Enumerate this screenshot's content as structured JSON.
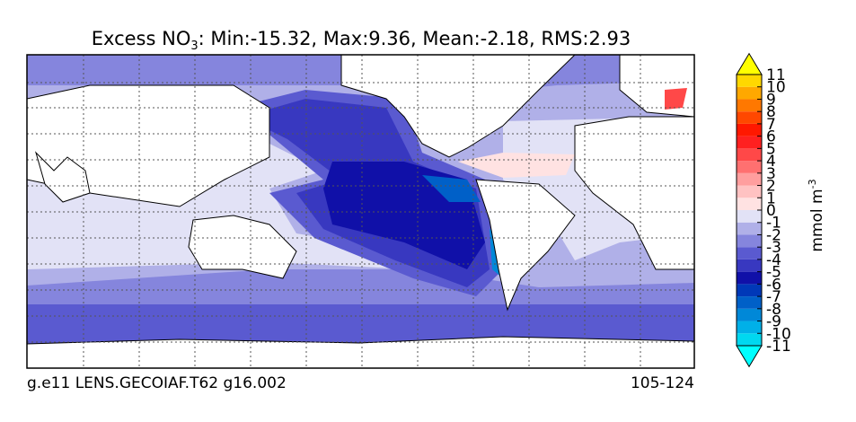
{
  "title": {
    "text": "Excess NO",
    "subscript": "3",
    "stats": ": Min:-15.32, Max:9.36, Mean:-2.18, RMS:2.93"
  },
  "footer": {
    "left": "g.e11 LENS.GECOIAF.T62 g16.002",
    "right": "105-124"
  },
  "colorbar": {
    "label": "mmol m",
    "label_superscript": "-3",
    "ticks": [
      -11,
      -10,
      -9,
      -8,
      -7,
      -6,
      -5,
      -4,
      -3,
      -2,
      -1,
      0,
      1,
      2,
      3,
      4,
      5,
      6,
      7,
      8,
      9,
      10,
      11
    ],
    "colors": [
      "#00ffff",
      "#00d8f0",
      "#00b0e8",
      "#0088d8",
      "#0060c8",
      "#0038b8",
      "#1010a8",
      "#3838c0",
      "#5a5ad0",
      "#8585dd",
      "#b0b0e8",
      "#e2e2f6",
      "#ffe2e2",
      "#ffc2c2",
      "#ff9e9e",
      "#ff7070",
      "#ff4848",
      "#ff2020",
      "#ff1800",
      "#ff4800",
      "#ff7800",
      "#ffa800",
      "#ffd800",
      "#ffff00"
    ]
  }
}
